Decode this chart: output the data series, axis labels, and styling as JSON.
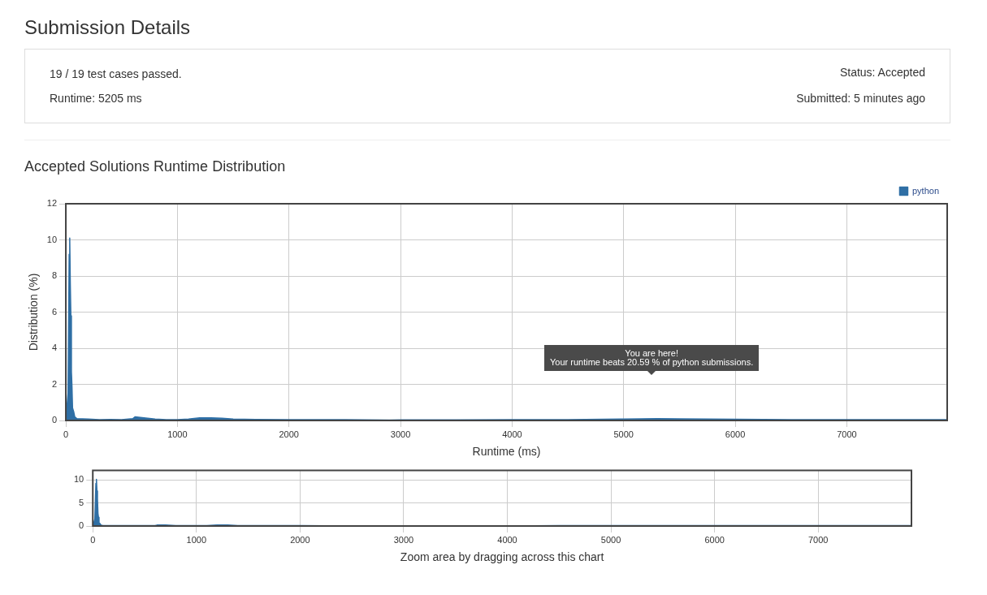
{
  "chart_data": [
    {
      "type": "other",
      "title": "Submission Details",
      "annotations": [
        "19 / 19 test cases passed.",
        "Runtime: 5205 ms",
        "Status: Accepted",
        "Submitted: 5 minutes ago"
      ]
    },
    {
      "type": "area",
      "title": "Accepted Solutions Runtime Distribution",
      "xlabel": "Runtime (ms)",
      "ylabel": "Distribution (%)",
      "x": [
        0,
        20,
        30,
        35,
        40,
        45,
        50,
        55,
        60,
        70,
        80,
        100,
        200,
        300,
        400,
        500,
        600,
        620,
        700,
        800,
        900,
        1000,
        1100,
        1200,
        1300,
        1400,
        1500,
        1700,
        2000,
        2500,
        2900,
        3000,
        3500,
        4000,
        4500,
        5000,
        5300,
        5500,
        6000,
        6500,
        7000,
        7500,
        7900
      ],
      "series": [
        {
          "name": "python",
          "color": "#2f6fa5",
          "values": [
            0,
            1.5,
            9.2,
            10.1,
            7.6,
            5.8,
            2.7,
            1.9,
            0.7,
            0.5,
            0.2,
            0.1,
            0.08,
            0.05,
            0.06,
            0.05,
            0.1,
            0.2,
            0.15,
            0.08,
            0.05,
            0.05,
            0.08,
            0.15,
            0.15,
            0.12,
            0.08,
            0.06,
            0.05,
            0.04,
            0.02,
            0.03,
            0.03,
            0.04,
            0.05,
            0.08,
            0.1,
            0.09,
            0.07,
            0.05,
            0.05,
            0.05,
            0.05
          ]
        }
      ],
      "xlim": [
        0,
        7900
      ],
      "xticks": [
        0,
        1000,
        2000,
        3000,
        4000,
        5000,
        6000,
        7000
      ],
      "ylim": [
        0,
        12
      ],
      "yticks": [
        0,
        2,
        4,
        6,
        8,
        10,
        12
      ],
      "grid": true,
      "legend": "top right",
      "annotations": [
        "You are here!\nYour runtime beats 20.59 % of python submissions."
      ]
    },
    {
      "type": "area",
      "xlabel": "Zoom area by dragging across this chart",
      "x": [
        0,
        20,
        30,
        35,
        40,
        45,
        50,
        55,
        60,
        70,
        80,
        100,
        200,
        300,
        400,
        500,
        600,
        620,
        700,
        800,
        900,
        1000,
        1100,
        1200,
        1300,
        1400,
        1500,
        1700,
        2000,
        2500,
        2900,
        3000,
        3500,
        4000,
        4500,
        5000,
        5300,
        5500,
        6000,
        6500,
        7000,
        7500,
        7900
      ],
      "series": [
        {
          "color": "#2f6fa5",
          "values": [
            0,
            1.5,
            9.2,
            10.1,
            7.6,
            5.8,
            2.7,
            1.9,
            0.7,
            0.5,
            0.2,
            0.1,
            0.1,
            0.1,
            0.1,
            0.1,
            0.1,
            0.2,
            0.2,
            0.1,
            0.1,
            0.1,
            0.1,
            0.2,
            0.2,
            0.1,
            0.1,
            0.1,
            0.1,
            0,
            0,
            0,
            0,
            0,
            0.1,
            0.1,
            0.1,
            0.1,
            0.1,
            0.1,
            0.1,
            0.1,
            0.1
          ]
        }
      ],
      "xlim": [
        0,
        7900
      ],
      "xticks": [
        0,
        1000,
        2000,
        3000,
        4000,
        5000,
        6000,
        7000
      ],
      "ylim": [
        0,
        12
      ],
      "yticks": [
        0,
        5,
        10
      ],
      "grid": true
    }
  ]
}
